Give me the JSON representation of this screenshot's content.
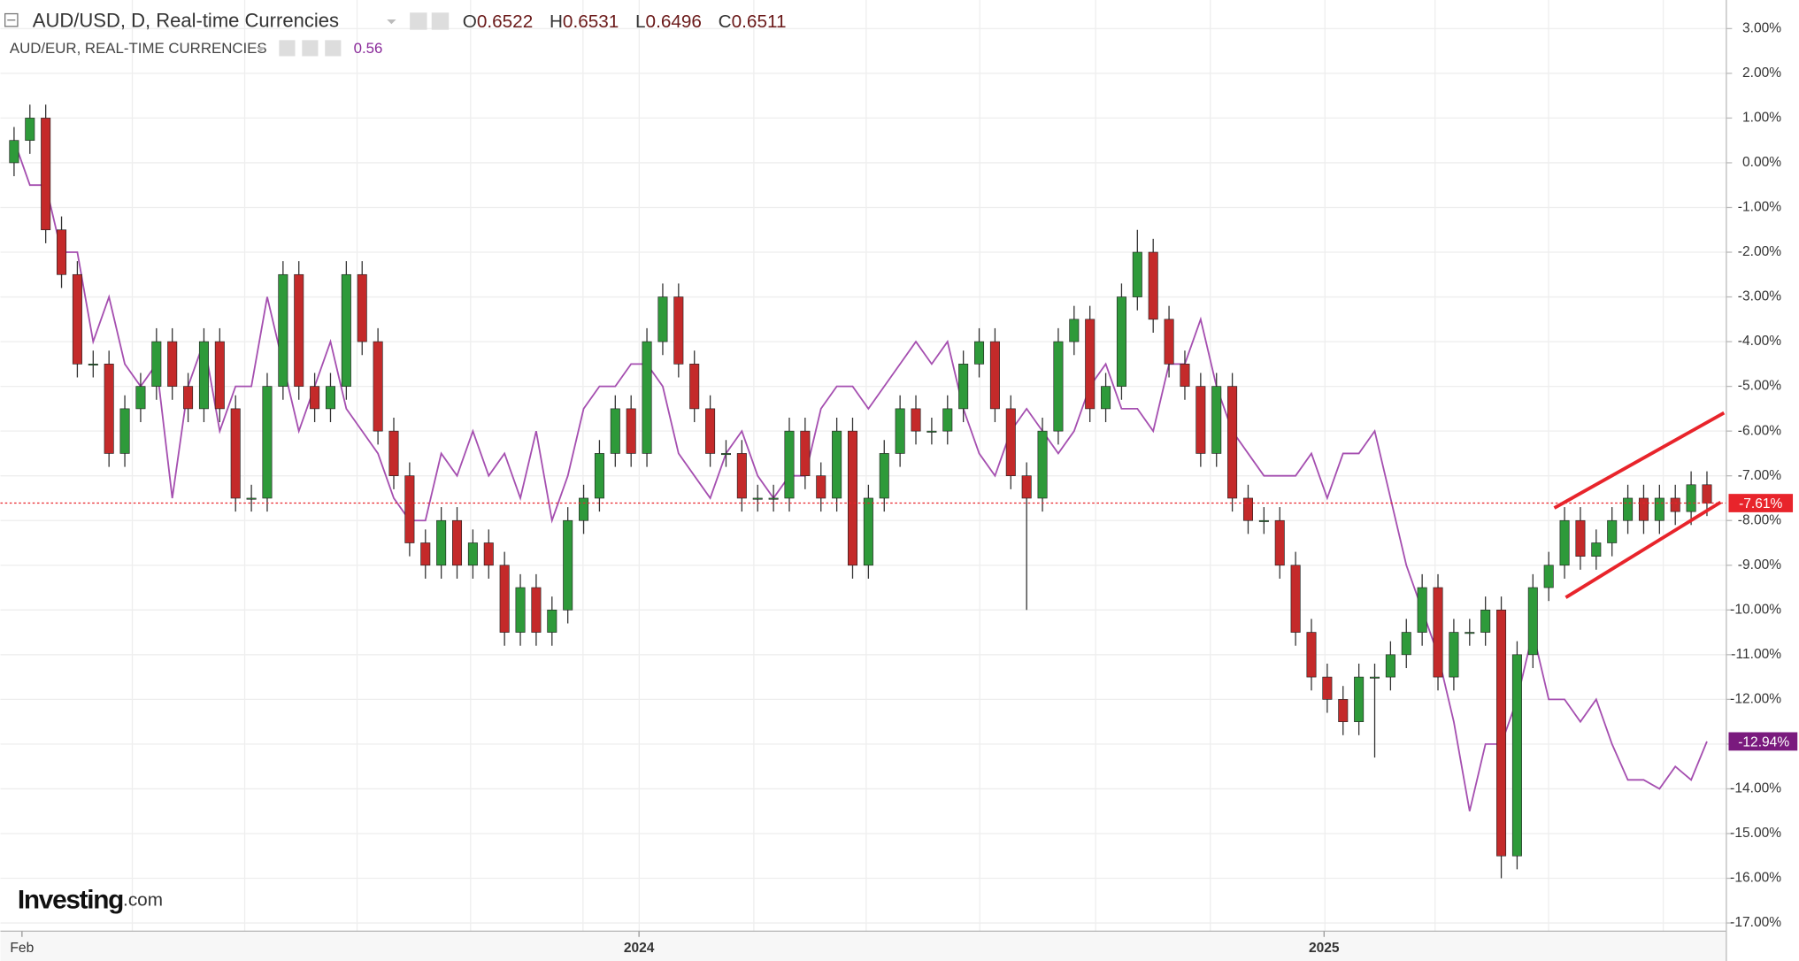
{
  "chart_data": {
    "type": "candlestick",
    "categories": [
      null,
      null,
      null,
      null,
      null,
      null,
      null,
      null,
      null,
      null,
      null,
      null,
      null,
      null,
      null,
      null,
      null,
      null,
      null,
      null,
      null,
      null,
      null,
      null,
      null,
      null,
      null,
      null,
      null,
      null,
      null,
      null,
      null,
      null,
      null,
      null,
      null,
      null,
      null,
      null,
      null,
      null,
      null,
      null,
      null,
      null,
      null,
      null,
      null,
      null,
      null,
      null,
      null,
      null,
      null,
      null,
      null,
      null,
      null,
      null,
      null,
      null,
      null,
      null,
      null,
      null,
      null,
      null,
      null,
      null,
      null,
      null,
      null,
      null,
      null,
      null,
      null,
      null,
      null,
      null,
      null,
      null,
      null,
      null,
      null,
      null,
      null,
      null,
      null,
      null,
      null,
      null,
      null,
      null,
      null,
      null,
      null,
      null,
      null,
      null,
      null,
      null,
      null,
      null,
      null,
      null,
      null,
      null
    ],
    "xticks": [
      {
        "value": 0.5,
        "label": "Feb"
      },
      {
        "value": 39.5,
        "label": "2024"
      },
      {
        "value": 82.8,
        "label": "2025"
      }
    ],
    "ylim": [
      -17.85,
      3.64
    ],
    "yticks": [
      {
        "value": 3,
        "label": "3.00%"
      },
      {
        "value": 2,
        "label": "2.00%"
      },
      {
        "value": 1,
        "label": "1.00%"
      },
      {
        "value": 0,
        "label": "0.00%"
      },
      {
        "value": -1,
        "label": "-1.00%"
      },
      {
        "value": -2,
        "label": "-2.00%"
      },
      {
        "value": -3,
        "label": "-3.00%"
      },
      {
        "value": -4,
        "label": "-4.00%"
      },
      {
        "value": -5,
        "label": "-5.00%"
      },
      {
        "value": -6,
        "label": "-6.00%"
      },
      {
        "value": -7,
        "label": "-7.00%"
      },
      {
        "value": -8,
        "label": "-8.00%"
      },
      {
        "value": -9,
        "label": "-9.00%"
      },
      {
        "value": -10,
        "label": "-10.00%"
      },
      {
        "value": -11,
        "label": "-11.00%"
      },
      {
        "value": -12,
        "label": "-12.00%"
      },
      {
        "value": -13,
        "label": "-13.00%"
      },
      {
        "value": -14,
        "label": "-14.00%"
      },
      {
        "value": -15,
        "label": "-15.00%"
      },
      {
        "value": -16,
        "label": "-16.00%"
      },
      {
        "value": -17,
        "label": "-17.00%"
      }
    ],
    "grid": true,
    "price_line": true,
    "logo": {
      "brand": "Investing",
      "suffix": ".com"
    },
    "series": [
      {
        "name": "AUD/USD, D, Real-time Currencies",
        "type": "candlestick",
        "up_color": "#2e9a3a",
        "down_color": "#c42a2a",
        "line_color": "#e8242b",
        "quote": [
          {
            "label": "O",
            "value": 0.6522
          },
          {
            "label": "H",
            "value": 0.6531
          },
          {
            "label": "L",
            "value": 0.6496
          },
          {
            "label": "C",
            "value": 0.6511
          }
        ],
        "open": [
          0,
          0.5,
          1.0,
          -1.5,
          -2.5,
          -4.5,
          -4.5,
          -6.5,
          -5.5,
          -5,
          -4,
          -5,
          -5.5,
          -4,
          -5.5,
          -7.5,
          -7.5,
          -5,
          -2.5,
          -5,
          -5.5,
          -5,
          -2.5,
          -4,
          -6,
          -7,
          -8.5,
          -9,
          -8,
          -9,
          -8.5,
          -9,
          -10.5,
          -9.5,
          -10.5,
          -10,
          -8,
          -7.5,
          -6.5,
          -5.5,
          -6.5,
          -4,
          -3,
          -4.5,
          -5.5,
          -6.5,
          -6.5,
          -7.5,
          -7.5,
          -7.5,
          -6,
          -7,
          -7.5,
          -6,
          -9,
          -7.5,
          -6.5,
          -5.5,
          -6,
          -6,
          -5.5,
          -4.5,
          -4,
          -5.5,
          -7,
          -7.5,
          -6,
          -4,
          -3.5,
          -5.5,
          -5,
          -3,
          -2,
          -3.5,
          -4.5,
          -5,
          -6.5,
          -5,
          -7.5,
          -8,
          -8,
          -9,
          -10.5,
          -11.5,
          -12,
          -12.5,
          -11.5,
          -11.5,
          -11,
          -10.5,
          -9.5,
          -11.5,
          -10.5,
          -10.5,
          -10,
          -15.5,
          -11,
          -9.5,
          -9,
          -8,
          -8.8,
          -8.5,
          -8,
          -7.5,
          -8,
          -7.5,
          -7.8,
          -7.2
        ],
        "high": [
          0.8,
          1.3,
          1.3,
          -1.2,
          -2.2,
          -4.2,
          -4.2,
          -5.2,
          -4.7,
          -3.7,
          -3.7,
          -4.7,
          -3.7,
          -3.7,
          -5.2,
          -7.2,
          -4.7,
          -2.2,
          -2.2,
          -4.7,
          -4.7,
          -2.2,
          -2.2,
          -3.7,
          -5.7,
          -6.7,
          -8.2,
          -7.7,
          -7.7,
          -8.2,
          -8.2,
          -8.7,
          -9.2,
          -9.2,
          -9.7,
          -7.7,
          -7.2,
          -6.2,
          -5.2,
          -5.2,
          -3.7,
          -2.7,
          -2.7,
          -4.2,
          -5.2,
          -6.2,
          -6.2,
          -7.2,
          -7.2,
          -5.7,
          -5.7,
          -6.7,
          -5.7,
          -5.7,
          -7.2,
          -6.2,
          -5.2,
          -5.2,
          -5.7,
          -5.2,
          -4.2,
          -3.7,
          -3.7,
          -5.2,
          -6.7,
          -5.7,
          -3.7,
          -3.2,
          -3.2,
          -4.7,
          -2.7,
          -1.5,
          -1.7,
          -3.2,
          -4.2,
          -4.7,
          -4.7,
          -4.7,
          -7.2,
          -7.7,
          -7.7,
          -8.7,
          -10.2,
          -11.2,
          -11.7,
          -11.2,
          -11.2,
          -10.7,
          -10.2,
          -9.2,
          -9.2,
          -10.2,
          -10.2,
          -9.7,
          -9.7,
          -10.7,
          -9.2,
          -8.7,
          -7.7,
          -7.7,
          -8.2,
          -7.7,
          -7.2,
          -7.2,
          -7.2,
          -7.2,
          -6.9,
          -6.9
        ],
        "low": [
          -0.3,
          0.2,
          -1.8,
          -2.8,
          -4.8,
          -4.8,
          -6.8,
          -6.8,
          -5.8,
          -5.3,
          -5.3,
          -5.8,
          -5.8,
          -5.8,
          -7.8,
          -7.8,
          -7.8,
          -5.3,
          -5.3,
          -5.8,
          -5.8,
          -5.3,
          -4.3,
          -6.3,
          -7.3,
          -8.8,
          -9.3,
          -9.3,
          -9.3,
          -9.3,
          -9.3,
          -10.8,
          -10.8,
          -10.8,
          -10.8,
          -10.3,
          -8.3,
          -7.8,
          -6.8,
          -6.8,
          -6.8,
          -4.3,
          -4.8,
          -5.8,
          -6.8,
          -6.8,
          -7.8,
          -7.8,
          -7.8,
          -7.8,
          -7.3,
          -7.8,
          -7.8,
          -9.3,
          -9.3,
          -7.8,
          -6.8,
          -6.3,
          -6.3,
          -6.3,
          -5.8,
          -4.8,
          -5.8,
          -7.3,
          -10,
          -7.8,
          -6.3,
          -4.3,
          -5.8,
          -5.8,
          -5.3,
          -3.3,
          -3.8,
          -4.8,
          -5.3,
          -6.8,
          -6.8,
          -7.8,
          -8.3,
          -8.3,
          -9.3,
          -10.8,
          -11.8,
          -12.3,
          -12.8,
          -12.8,
          -13.3,
          -11.8,
          -11.3,
          -10.8,
          -11.8,
          -11.8,
          -10.8,
          -10.8,
          -16,
          -15.8,
          -11.3,
          -9.8,
          -9.3,
          -9.1,
          -9.1,
          -8.8,
          -8.3,
          -8.3,
          -8.3,
          -8.1,
          -8.1,
          -7.9
        ],
        "close": [
          0.5,
          1.0,
          -1.5,
          -2.5,
          -4.5,
          -4.5,
          -6.5,
          -5.5,
          -5,
          -4,
          -5,
          -5.5,
          -4,
          -5.5,
          -7.5,
          -7.5,
          -5,
          -2.5,
          -5,
          -5.5,
          -5,
          -2.5,
          -4,
          -6,
          -7,
          -8.5,
          -9,
          -8,
          -9,
          -8.5,
          -9,
          -10.5,
          -9.5,
          -10.5,
          -10,
          -8,
          -7.5,
          -6.5,
          -5.5,
          -6.5,
          -4,
          -3,
          -4.5,
          -5.5,
          -6.5,
          -6.5,
          -7.5,
          -7.5,
          -7.5,
          -6,
          -7,
          -7.5,
          -6,
          -9,
          -7.5,
          -6.5,
          -5.5,
          -6,
          -6,
          -5.5,
          -4.5,
          -4,
          -5.5,
          -7,
          -7.5,
          -6,
          -4,
          -3.5,
          -5.5,
          -5,
          -3,
          -2,
          -3.5,
          -4.5,
          -5,
          -6.5,
          -5,
          -7.5,
          -8,
          -8,
          -9,
          -10.5,
          -11.5,
          -12,
          -12.5,
          -11.5,
          -11.5,
          -11,
          -10.5,
          -9.5,
          -11.5,
          -10.5,
          -10.5,
          -10,
          -15.5,
          -11,
          -9.5,
          -9,
          -8,
          -8.8,
          -8.5,
          -8,
          -7.5,
          -8,
          -7.5,
          -7.8,
          -7.2,
          -7.61
        ],
        "last_label": "-7.61%"
      },
      {
        "name": "AUD/EUR, REAL-TIME CURRENCIES",
        "type": "line",
        "color": "#a54fb0",
        "label_color": "#7a1a7e",
        "value": 0.56,
        "values": [
          0.5,
          -0.5,
          -0.5,
          -2,
          -2,
          -4,
          -3,
          -4.5,
          -5,
          -4.5,
          -7.5,
          -5,
          -4,
          -6,
          -5,
          -5,
          -3,
          -4.5,
          -6,
          -5,
          -4,
          -5.5,
          -6,
          -6.5,
          -7.5,
          -8,
          -8,
          -6.5,
          -7,
          -6,
          -7,
          -6.5,
          -7.5,
          -6,
          -8,
          -7,
          -5.5,
          -5,
          -5,
          -4.5,
          -4.5,
          -5,
          -6.5,
          -7,
          -7.5,
          -6.5,
          -6,
          -7,
          -7.5,
          -7,
          -7,
          -5.5,
          -5,
          -5,
          -5.5,
          -5,
          -4.5,
          -4,
          -4.5,
          -4,
          -5.5,
          -6.5,
          -7,
          -6,
          -5.5,
          -6,
          -6.5,
          -6,
          -5,
          -4.5,
          -5.5,
          -5.5,
          -6,
          -4.5,
          -4.5,
          -3.5,
          -5,
          -6,
          -6.5,
          -7,
          -7,
          -7,
          -6.5,
          -7.5,
          -6.5,
          -6.5,
          -6,
          -7.5,
          -9,
          -10,
          -11,
          -12.5,
          -14.5,
          -13,
          -13,
          -12,
          -10.5,
          -12,
          -12,
          -12.5,
          -12,
          -13,
          -13.8,
          -13.8,
          -14,
          -13.5,
          -13.8,
          -12.94
        ],
        "last_label": "-12.94%"
      }
    ]
  }
}
